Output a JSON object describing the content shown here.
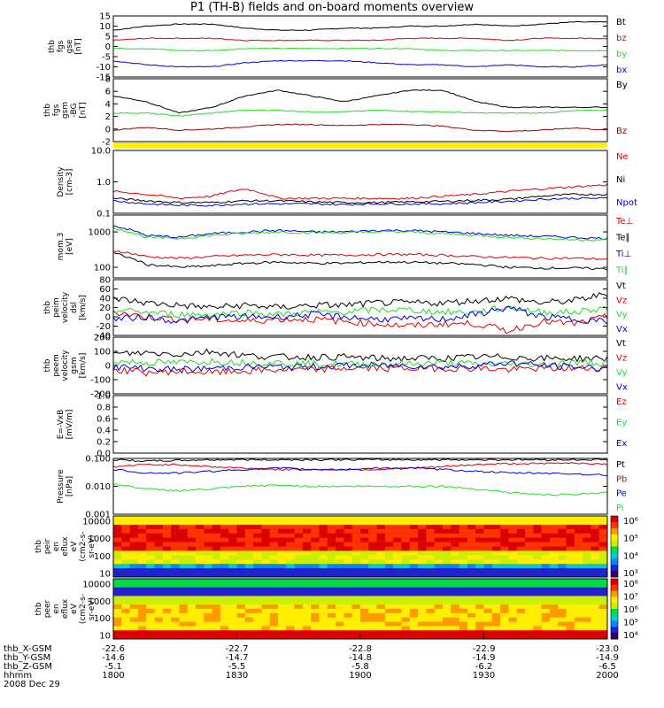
{
  "title": "P1 (TH-B) fields and on-board moments overview",
  "colors": {
    "black": "#000000",
    "red": "#dd0000",
    "green": "#22dd22",
    "blue": "#0000dd",
    "yellow": "#ffee00",
    "darkred": "#990000"
  },
  "chart_data": [
    {
      "type": "line",
      "ylabel": [
        "thb",
        "fgs",
        "gse",
        "[nT]"
      ],
      "ylim": [
        -15,
        15
      ],
      "ticks": [
        "15",
        "10",
        "5",
        "0",
        "-5",
        "-10",
        "-15"
      ],
      "series": [
        {
          "name": "Bt",
          "color": "black",
          "values": [
            8,
            10,
            11,
            11,
            9,
            8,
            8,
            9,
            9,
            10,
            10,
            11,
            10,
            11,
            12,
            12
          ]
        },
        {
          "name": "bz",
          "color": "red",
          "values": [
            3,
            4,
            4,
            4,
            3,
            3,
            3,
            3,
            3,
            4,
            4,
            4,
            3,
            4,
            4,
            4
          ]
        },
        {
          "name": "by",
          "color": "green",
          "values": [
            -1,
            -1,
            -2,
            -2,
            -1,
            -1,
            -1,
            -1,
            -1,
            -1,
            -2,
            -2,
            -2,
            -2,
            -2,
            -2
          ]
        },
        {
          "name": "bx",
          "color": "blue",
          "values": [
            -7,
            -9,
            -10,
            -10,
            -8,
            -7,
            -7,
            -7,
            -8,
            -9,
            -9,
            -10,
            -9,
            -10,
            -10,
            -9
          ]
        }
      ]
    },
    {
      "type": "line",
      "ylabel": [
        "thb",
        "fgs",
        "gsm",
        "-BG",
        "[nT]"
      ],
      "ylim": [
        -3,
        8
      ],
      "ticks": [
        "8",
        "6",
        "4",
        "2",
        "0",
        "-2"
      ],
      "series": [
        {
          "name": "By",
          "color": "black",
          "values": [
            5,
            4,
            2,
            3,
            5,
            6,
            5,
            4,
            5,
            6,
            6,
            4,
            3,
            3,
            3,
            3
          ]
        },
        {
          "name": "",
          "color": "green",
          "values": [
            2,
            2,
            1.5,
            2,
            2.5,
            2.5,
            2.2,
            2.2,
            2.5,
            2.3,
            2.2,
            2,
            2,
            2,
            2.4,
            2.5
          ]
        },
        {
          "name": "Bz",
          "color": "darkred",
          "values": [
            -1,
            -0.5,
            -1,
            -0.8,
            -0.4,
            0,
            0,
            -0.2,
            0,
            0,
            -0.3,
            -1,
            -1.2,
            -1,
            -0.6,
            -1
          ]
        }
      ]
    },
    {
      "type": "line",
      "ylabel": [
        "Density",
        "[cm-3]"
      ],
      "scale": "log",
      "ylim": [
        0.1,
        10
      ],
      "ticks": [
        "10.0",
        "1.0",
        "0.1"
      ],
      "series": [
        {
          "name": "Ne",
          "color": "red",
          "values": [
            0.5,
            0.4,
            0.3,
            0.35,
            0.6,
            0.3,
            0.3,
            0.3,
            0.3,
            0.3,
            0.35,
            0.4,
            0.5,
            0.6,
            0.7,
            0.8
          ]
        },
        {
          "name": "Ni",
          "color": "black",
          "values": [
            0.3,
            0.25,
            0.22,
            0.22,
            0.25,
            0.25,
            0.23,
            0.22,
            0.22,
            0.23,
            0.24,
            0.26,
            0.28,
            0.35,
            0.4,
            0.4
          ]
        },
        {
          "name": "Npot",
          "color": "blue",
          "values": [
            0.25,
            0.2,
            0.18,
            0.18,
            0.2,
            0.2,
            0.2,
            0.19,
            0.2,
            0.2,
            0.2,
            0.22,
            0.24,
            0.28,
            0.3,
            0.3
          ]
        }
      ]
    },
    {
      "type": "line",
      "ylabel": [
        "mom.3",
        "[eV]"
      ],
      "scale": "log",
      "ylim": [
        50,
        3000
      ],
      "ticks": [
        "1000",
        "100"
      ],
      "series": [
        {
          "name": "Te⊥",
          "color": "red",
          "values": [
            300,
            200,
            180,
            200,
            220,
            230,
            220,
            220,
            230,
            230,
            220,
            200,
            190,
            180,
            180,
            170
          ]
        },
        {
          "name": "Te∥",
          "color": "black",
          "values": [
            250,
            120,
            100,
            110,
            130,
            140,
            130,
            130,
            140,
            140,
            130,
            120,
            100,
            95,
            95,
            90
          ]
        },
        {
          "name": "Ti⊥",
          "color": "blue",
          "values": [
            1500,
            800,
            700,
            900,
            1000,
            1100,
            1000,
            1000,
            1100,
            1100,
            1000,
            900,
            800,
            750,
            700,
            650
          ]
        },
        {
          "name": "Ti∥",
          "color": "green",
          "values": [
            1300,
            700,
            650,
            800,
            900,
            1000,
            950,
            950,
            1000,
            1000,
            900,
            800,
            700,
            650,
            600,
            600
          ]
        }
      ]
    },
    {
      "type": "line",
      "ylabel": [
        "thb",
        "peim",
        "velocity",
        "dsl",
        "[km/s]"
      ],
      "ylim": [
        -40,
        80
      ],
      "ticks": [
        "80",
        "60",
        "40",
        "20",
        "0",
        "-20",
        "-40"
      ],
      "series": [
        {
          "name": "Vt",
          "color": "black",
          "values": [
            40,
            30,
            25,
            20,
            25,
            20,
            25,
            25,
            30,
            30,
            30,
            35,
            40,
            30,
            35,
            50
          ]
        },
        {
          "name": "Vz",
          "color": "red",
          "values": [
            10,
            0,
            -5,
            -5,
            -10,
            -5,
            -5,
            -10,
            -15,
            -20,
            -15,
            -15,
            -30,
            -10,
            -15,
            0
          ]
        },
        {
          "name": "Vy",
          "color": "green",
          "values": [
            15,
            10,
            5,
            5,
            10,
            5,
            10,
            10,
            15,
            15,
            10,
            10,
            20,
            10,
            10,
            20
          ]
        },
        {
          "name": "Vx",
          "color": "blue",
          "values": [
            -5,
            0,
            -10,
            0,
            0,
            0,
            5,
            0,
            -5,
            -5,
            -5,
            5,
            20,
            0,
            -5,
            -10
          ]
        }
      ]
    },
    {
      "type": "line",
      "ylabel": [
        "thb",
        "peem",
        "velocity",
        "gsm",
        "[km/s]"
      ],
      "ylim": [
        -200,
        200
      ],
      "ticks": [
        "200",
        "100",
        "0",
        "-100",
        "-200"
      ],
      "series": [
        {
          "name": "Vt",
          "color": "black",
          "values": [
            80,
            90,
            80,
            100,
            70,
            60,
            60,
            60,
            50,
            50,
            50,
            60,
            60,
            50,
            50,
            50
          ]
        },
        {
          "name": "Vz",
          "color": "red",
          "values": [
            -30,
            -50,
            -40,
            -50,
            -40,
            -30,
            -30,
            -20,
            -20,
            -20,
            -20,
            -20,
            -30,
            -20,
            -20,
            -20
          ]
        },
        {
          "name": "Vy",
          "color": "green",
          "values": [
            30,
            20,
            20,
            30,
            20,
            20,
            10,
            10,
            10,
            10,
            20,
            10,
            10,
            10,
            20,
            20
          ]
        },
        {
          "name": "Vx",
          "color": "blue",
          "values": [
            -10,
            -20,
            -30,
            -20,
            -10,
            -10,
            -10,
            0,
            0,
            0,
            -10,
            0,
            20,
            0,
            -10,
            -20
          ]
        }
      ]
    },
    {
      "type": "line",
      "ylabel": [
        "E=-VxB",
        "[mV/m]"
      ],
      "ylim": [
        0,
        1
      ],
      "ticks": [
        "1.0",
        "0.8",
        "0.6",
        "0.4",
        "0.2",
        "0.0"
      ],
      "series": [
        {
          "name": "Ez",
          "color": "red",
          "values": []
        },
        {
          "name": "Ey",
          "color": "green",
          "values": []
        },
        {
          "name": "Ex",
          "color": "blue",
          "values": []
        }
      ]
    },
    {
      "type": "line",
      "ylabel": [
        "Pressure",
        "[nPa]"
      ],
      "scale": "log",
      "ylim": [
        0.001,
        0.1
      ],
      "ticks": [
        "0.100",
        "0.010",
        "0.001"
      ],
      "series": [
        {
          "name": "Pt",
          "color": "black",
          "values": [
            0.09,
            0.08,
            0.085,
            0.09,
            0.09,
            0.09,
            0.09,
            0.09,
            0.09,
            0.09,
            0.09,
            0.09,
            0.09,
            0.09,
            0.09,
            0.09
          ]
        },
        {
          "name": "Pb",
          "color": "red",
          "values": [
            0.05,
            0.06,
            0.06,
            0.05,
            0.045,
            0.04,
            0.04,
            0.04,
            0.04,
            0.045,
            0.05,
            0.06,
            0.065,
            0.065,
            0.07,
            0.06
          ]
        },
        {
          "name": "Pe",
          "color": "blue",
          "values": [
            0.04,
            0.03,
            0.03,
            0.035,
            0.04,
            0.045,
            0.04,
            0.04,
            0.045,
            0.045,
            0.04,
            0.035,
            0.03,
            0.03,
            0.028,
            0.025
          ]
        },
        {
          "name": "Pi",
          "color": "green",
          "values": [
            0.012,
            0.008,
            0.007,
            0.008,
            0.01,
            0.011,
            0.01,
            0.01,
            0.01,
            0.01,
            0.01,
            0.008,
            0.006,
            0.005,
            0.005,
            0.006
          ]
        }
      ]
    },
    {
      "type": "heatmap",
      "ylabel": [
        "thb",
        "peir",
        "en",
        "eflux",
        "eV",
        "(cm2-s-",
        "sr-eV)"
      ],
      "ylim": [
        5,
        20000
      ],
      "ticks": [
        "10000",
        "1000",
        "100",
        "10"
      ],
      "colorbar": {
        "ticks": [
          "10⁶",
          "10⁵",
          "10⁴",
          "10³"
        ]
      }
    },
    {
      "type": "heatmap",
      "ylabel": [
        "thb",
        "peer",
        "en",
        "eflux",
        "eV",
        "(cm2-s-",
        "sr-eV)"
      ],
      "ylim": [
        5,
        20000
      ],
      "ticks": [
        "10000",
        "1000",
        "100",
        "10"
      ],
      "colorbar": {
        "ticks": [
          "10⁸",
          "10⁷",
          "10⁶",
          "10⁵",
          "10⁴"
        ]
      }
    }
  ],
  "xaxis": {
    "rows": [
      {
        "label": "thb_X-GSM",
        "values": [
          "-22.6",
          "-22.7",
          "-22.8",
          "-22.9",
          "-23.0"
        ]
      },
      {
        "label": "thb_Y-GSM",
        "values": [
          "-14.6",
          "-14.7",
          "-14.8",
          "-14.9",
          "-14.9"
        ]
      },
      {
        "label": "thb_Z-GSM",
        "values": [
          "-5.1",
          "-5.5",
          "-5.8",
          "-6.2",
          "-6.5"
        ]
      },
      {
        "label": "hhmm",
        "values": [
          "1800",
          "1830",
          "1900",
          "1930",
          "2000"
        ]
      }
    ],
    "date": "2008 Dec 29"
  }
}
